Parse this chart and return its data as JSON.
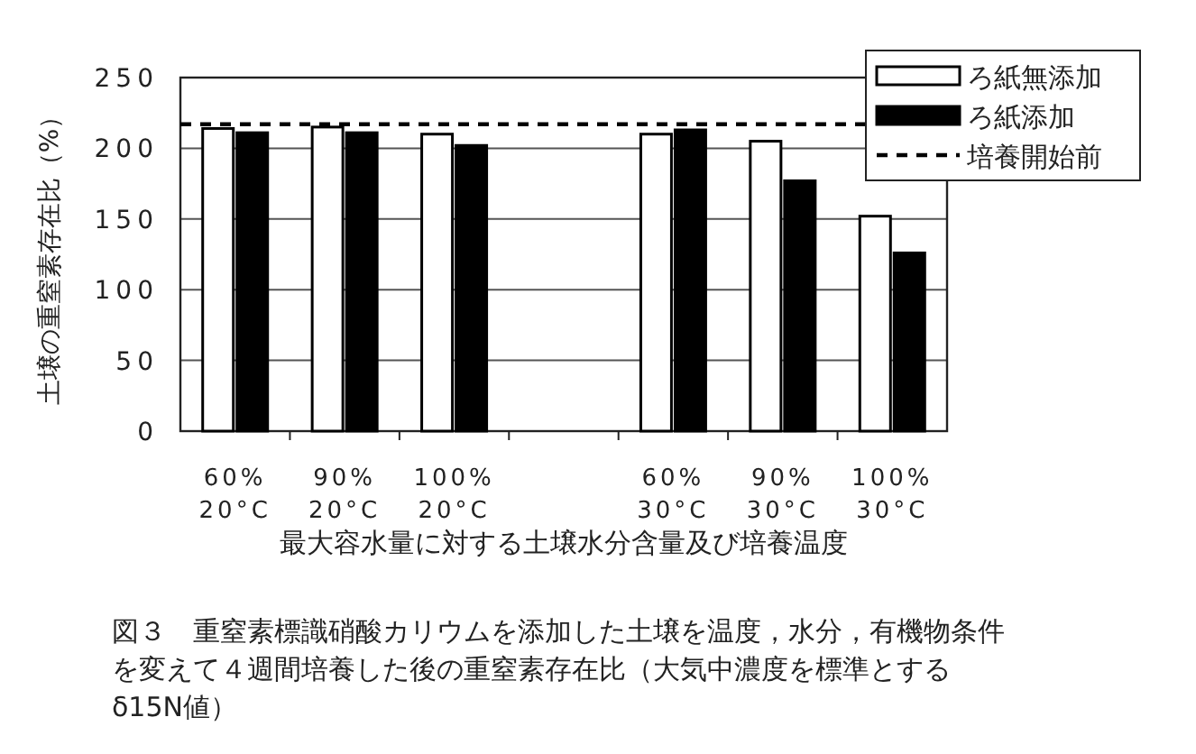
{
  "chart_data": {
    "type": "bar",
    "ylabel": "土壌の重窒素存在比（%）",
    "xlabel": "最大容水量に対する土壌水分含量及び培養温度",
    "categories": [
      "60%\n20°C",
      "90%\n20°C",
      "100%\n20°C",
      null,
      "60%\n30°C",
      "90%\n30°C",
      "100%\n30°C"
    ],
    "series": [
      {
        "name": "ろ紙無添加",
        "color": "#ffffff",
        "values": [
          214,
          215,
          210,
          null,
          210,
          205,
          152
        ]
      },
      {
        "name": "ろ紙添加",
        "color": "#000000",
        "values": [
          211,
          211,
          202,
          null,
          213,
          177,
          126
        ]
      }
    ],
    "ref_lines": [
      {
        "axis": "y",
        "value": 217,
        "label": "培養開始前",
        "line_style": "dashed",
        "color": "#000000"
      }
    ],
    "ylim": [
      0,
      250
    ],
    "yticks": [
      0,
      50,
      100,
      150,
      200,
      250
    ],
    "grid": "y",
    "legend": "top right",
    "annotations": [
      "図３　重窒素標識硝酸カリウムを添加した土壌を温度，水分，有機物条件を変えて４週間培養した後の重窒素存在比（大気中濃度を標準とするδ15N値）"
    ]
  }
}
